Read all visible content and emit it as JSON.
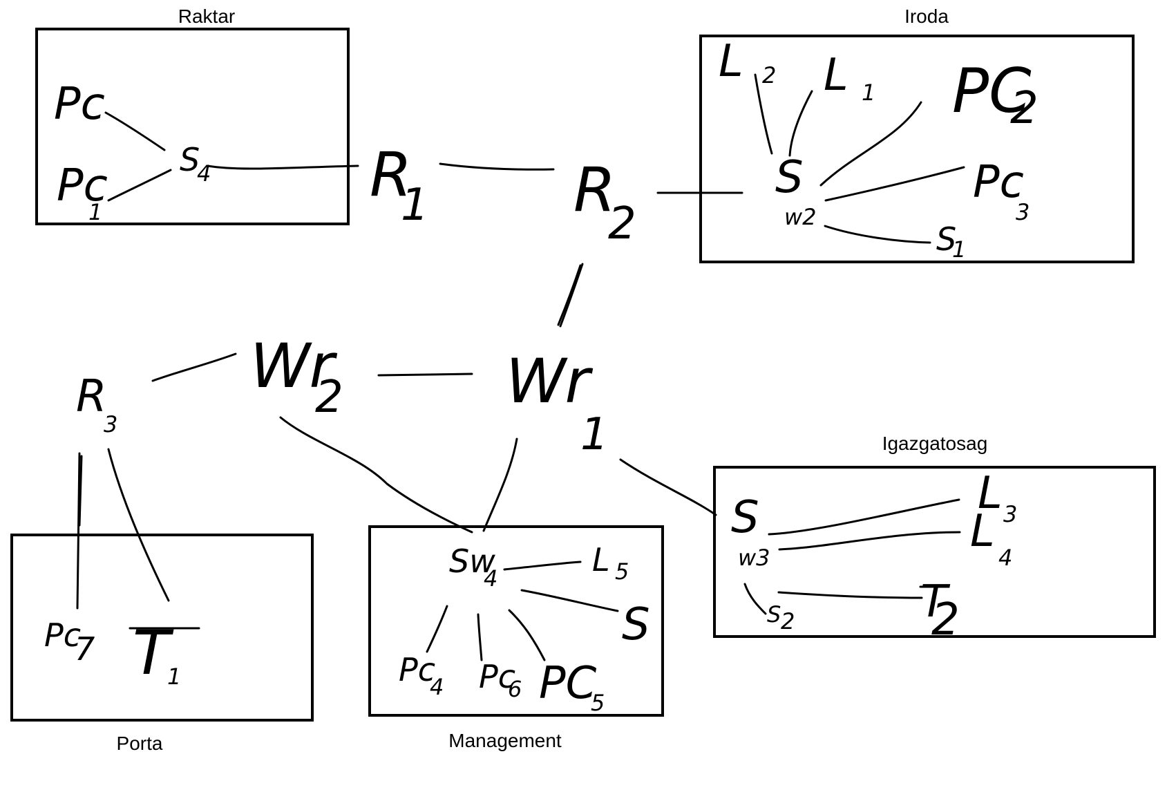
{
  "rooms": {
    "raktar": "Raktar",
    "iroda": "Iroda",
    "igazgatosag": "Igazgatosag",
    "porta": "Porta",
    "management": "Management"
  },
  "nodes": {
    "raktar": {
      "pc": "Pc",
      "pc1_main": "Pc",
      "pc1_sub": "1",
      "switch_main": "S",
      "switch_sub": "4"
    },
    "r1_main": "R",
    "r1_sub": "1",
    "r2_main": "R",
    "r2_sub": "2",
    "iroda": {
      "l2_main": "L",
      "l2_sub": "2",
      "l1_main": "L",
      "l1_sub": "1",
      "pc2_main": "PC",
      "pc2_sub": "2",
      "pc3_main": "Pc",
      "pc3_sub": "3",
      "switch_main": "S",
      "switch_sub": "w2",
      "s1_main": "S",
      "s1_sub": "1"
    },
    "wr2_main": "Wr",
    "wr2_sub": "2",
    "wr1_main": "Wr",
    "wr1_sub": "1",
    "r3_main": "R",
    "r3_sub": "3",
    "porta": {
      "pc7_main": "Pc",
      "pc7_sub": "7",
      "t1_main": "T",
      "t1_sub": "1"
    },
    "management": {
      "switch_main": "Sw",
      "switch_sub": "4",
      "l5_main": "L",
      "l5_sub": "5",
      "s_main": "S",
      "pc4_main": "Pc",
      "pc4_sub": "4",
      "pc6_main": "Pc",
      "pc6_sub": "6",
      "pc5_main": "PC",
      "pc5_sub": "5"
    },
    "igazgatosag": {
      "switch_main": "S",
      "switch_sub": "w3",
      "l3_main": "L",
      "l3_sub": "3",
      "l4_main": "L",
      "l4_sub": "4",
      "s2_main": "S",
      "s2_sub": "2",
      "t2_main": "T",
      "t2_sub": "2"
    }
  }
}
